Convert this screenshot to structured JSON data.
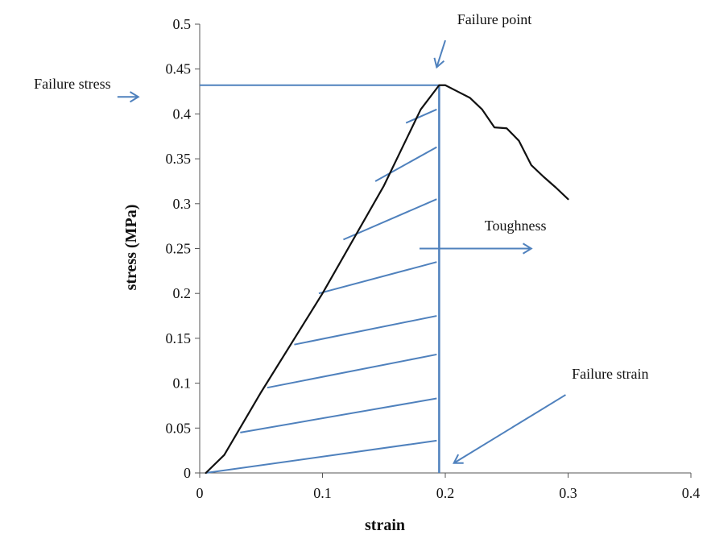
{
  "chart_data": {
    "type": "line",
    "xlabel": "strain",
    "ylabel": "stress (MPa)",
    "xlim": [
      0,
      0.4
    ],
    "ylim": [
      0,
      0.5
    ],
    "x_ticks": [
      "0",
      "0.1",
      "0.2",
      "0.3",
      "0.4"
    ],
    "y_ticks": [
      "0",
      "0.05",
      "0.1",
      "0.15",
      "0.2",
      "0.25",
      "0.3",
      "0.35",
      "0.4",
      "0.45",
      "0.5"
    ],
    "grid": false,
    "colors": {
      "curve": "#111111",
      "accent": "#4f81bd",
      "axis": "#555555"
    },
    "series": [
      {
        "x": [
          0.005,
          0.02,
          0.05,
          0.1,
          0.15,
          0.18,
          0.195,
          0.2,
          0.21,
          0.22,
          0.23,
          0.24,
          0.25,
          0.26,
          0.27,
          0.28,
          0.29,
          0.3
        ],
        "y": [
          0.0,
          0.02,
          0.09,
          0.2,
          0.32,
          0.405,
          0.432,
          0.432,
          0.425,
          0.418,
          0.405,
          0.385,
          0.384,
          0.37,
          0.343,
          0.33,
          0.318,
          0.305
        ]
      }
    ],
    "failure_point": {
      "x": 0.195,
      "y": 0.432
    },
    "failure_stress_value": 0.432,
    "failure_strain_value": 0.195,
    "hatch_lines": [
      {
        "x1": 0.005,
        "y1": 0.0,
        "x2": 0.193,
        "y2": 0.036
      },
      {
        "x1": 0.033,
        "y1": 0.045,
        "x2": 0.193,
        "y2": 0.083
      },
      {
        "x1": 0.055,
        "y1": 0.095,
        "x2": 0.193,
        "y2": 0.132
      },
      {
        "x1": 0.077,
        "y1": 0.143,
        "x2": 0.193,
        "y2": 0.175
      },
      {
        "x1": 0.097,
        "y1": 0.2,
        "x2": 0.193,
        "y2": 0.235
      },
      {
        "x1": 0.117,
        "y1": 0.26,
        "x2": 0.193,
        "y2": 0.305
      },
      {
        "x1": 0.143,
        "y1": 0.325,
        "x2": 0.193,
        "y2": 0.363
      },
      {
        "x1": 0.168,
        "y1": 0.39,
        "x2": 0.193,
        "y2": 0.405
      }
    ],
    "annotations": [
      {
        "text": "Failure point",
        "text_x": 0.24,
        "text_y": 0.5,
        "arrow": {
          "x1": 0.2,
          "y1": 0.482,
          "x2": 0.193,
          "y2": 0.452
        }
      },
      {
        "text": "Failure stress",
        "text_x": -0.135,
        "text_y": 0.428,
        "arrow": {
          "x1": -0.067,
          "y1": 0.419,
          "x2": -0.05,
          "y2": 0.419
        }
      },
      {
        "text": "Toughness",
        "text_x": 0.232,
        "text_y": 0.27,
        "arrow": {
          "x1": 0.179,
          "y1": 0.25,
          "x2": 0.27,
          "y2": 0.25
        }
      },
      {
        "text": "Failure strain",
        "text_x": 0.303,
        "text_y": 0.105,
        "arrow": {
          "x1": 0.298,
          "y1": 0.087,
          "x2": 0.207,
          "y2": 0.011
        }
      }
    ]
  }
}
